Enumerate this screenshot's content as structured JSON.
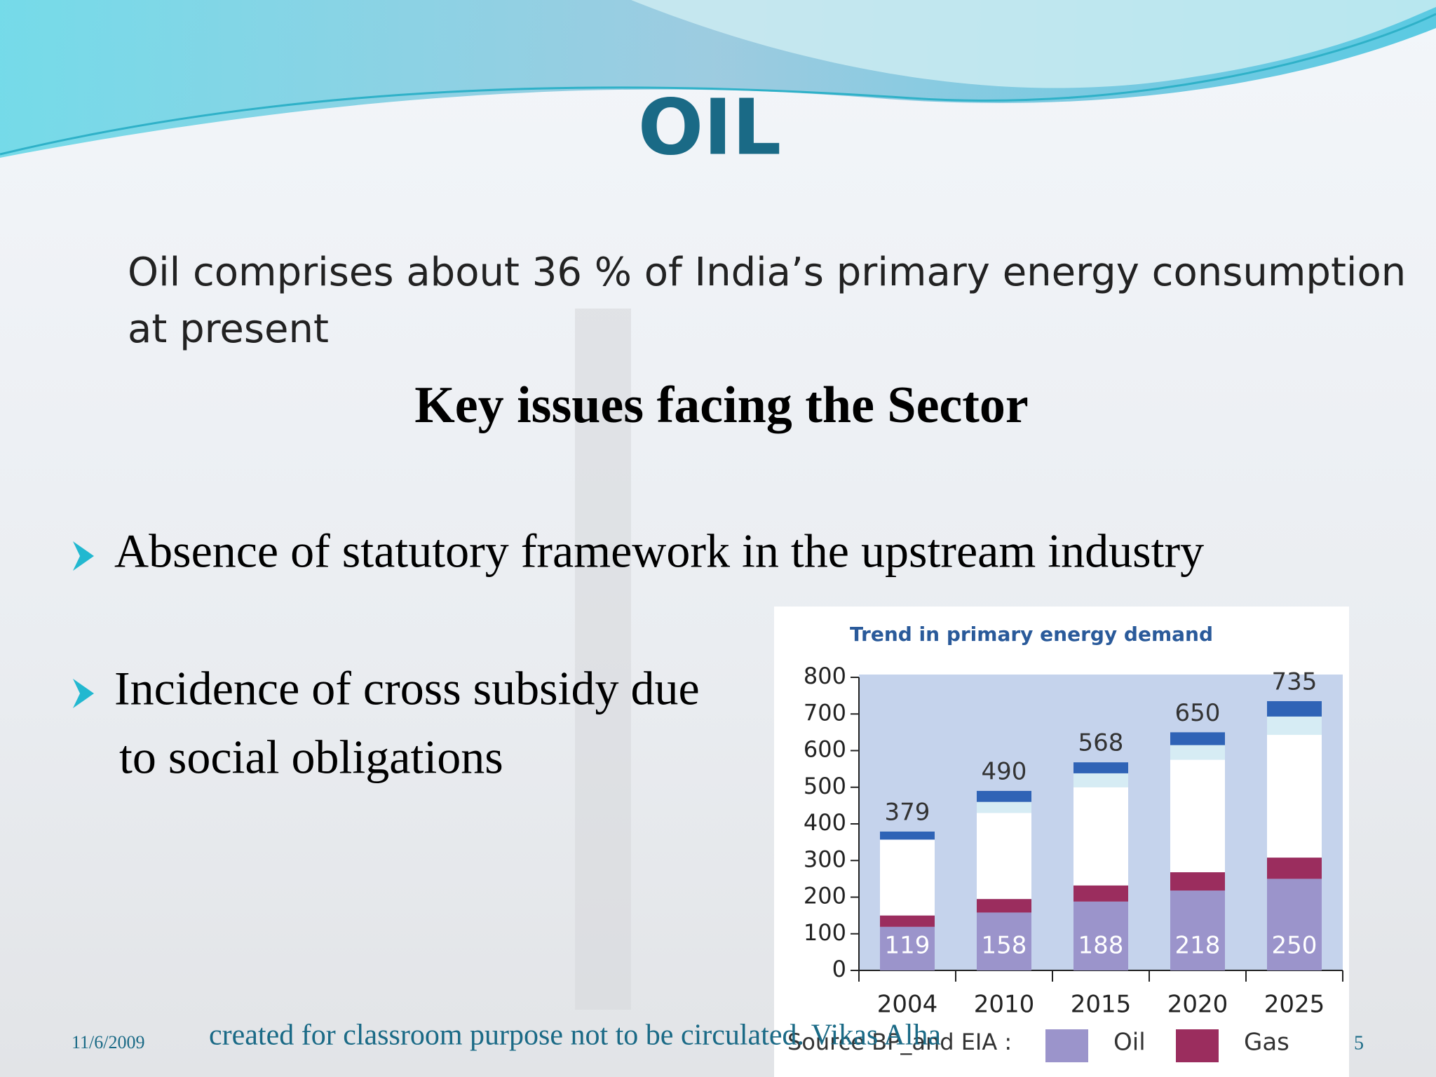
{
  "title": "OIL",
  "intro": [
    "Oil comprises about 36 % of India’s primary energy consumption",
    "at present"
  ],
  "heading": "Key issues facing the Sector",
  "bullets": [
    [
      "Absence of statutory framework in the upstream industry"
    ],
    [
      "Incidence of cross subsidy due",
      "to social obligations"
    ]
  ],
  "footer": {
    "date": "11/6/2009",
    "credit": "created for classroom purpose not to be circulated. Vikas Alha",
    "page": "5"
  },
  "chart_data": {
    "type": "stacked_bar",
    "title": "Trend in primary energy demand",
    "source": "Source BP_and EIA :",
    "categories": [
      "2004",
      "2010",
      "2015",
      "2020",
      "2025"
    ],
    "series": [
      {
        "name": "Oil",
        "color": "#9b94cb",
        "values": [
          119,
          158,
          188,
          218,
          250
        ]
      },
      {
        "name": "Gas",
        "color": "#9b2d5e",
        "values": [
          31,
          37,
          44,
          50,
          58
        ]
      },
      {
        "color": "#ffffff",
        "values": [
          207,
          235,
          268,
          307,
          335
        ]
      },
      {
        "color": "#d6ecf4",
        "values": [
          0,
          30,
          38,
          40,
          50
        ]
      },
      {
        "color": "#2f63b6",
        "values": [
          22,
          30,
          30,
          35,
          42
        ]
      }
    ],
    "totals": [
      379,
      490,
      568,
      650,
      735
    ],
    "ylim": [
      0,
      800
    ],
    "yticks": [
      0,
      100,
      200,
      300,
      400,
      500,
      600,
      700,
      800
    ],
    "legend": "bottom"
  }
}
